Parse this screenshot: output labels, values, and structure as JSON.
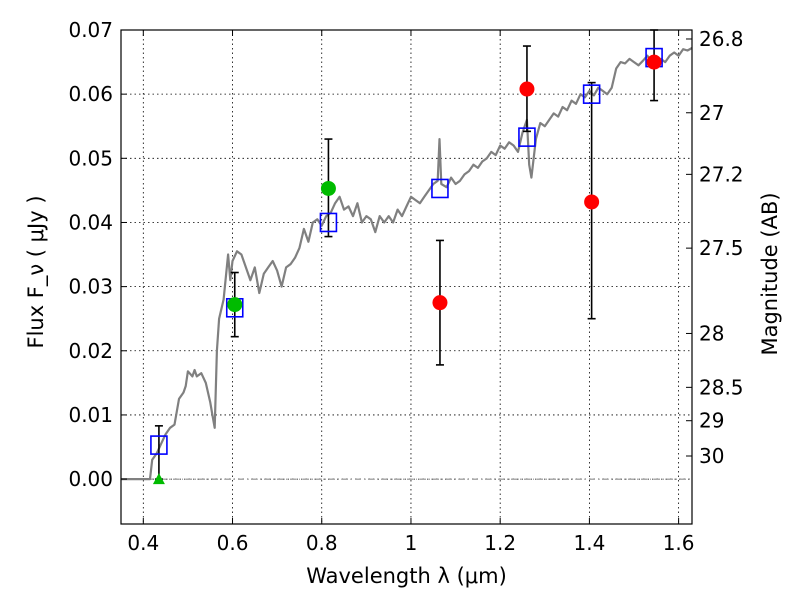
{
  "chart_data": {
    "type": "scatter",
    "xlabel": "Wavelength  λ (μm)",
    "ylabel": "Flux  F_ν  ( μJy )",
    "ylabel2": "Magnitude (AB)",
    "xlim": [
      0.35,
      1.63
    ],
    "ylim": [
      -0.007,
      0.07
    ],
    "grid": true,
    "x_ticks": [
      0.4,
      0.6,
      0.8,
      1.0,
      1.2,
      1.4,
      1.6
    ],
    "x_tick_labels": [
      "0.4",
      "0.6",
      "0.8",
      "1",
      "1.2",
      "1.4",
      "1.6"
    ],
    "y_ticks": [
      0.0,
      0.01,
      0.02,
      0.03,
      0.04,
      0.05,
      0.06,
      0.07
    ],
    "y_tick_labels": [
      "0.00",
      "0.01",
      "0.02",
      "0.03",
      "0.04",
      "0.05",
      "0.06",
      "0.07"
    ],
    "mag_ticks": [
      {
        "label": "26.8",
        "flux": 0.0686
      },
      {
        "label": "27",
        "flux": 0.0571
      },
      {
        "label": "27.2",
        "flux": 0.0475
      },
      {
        "label": "27.5",
        "flux": 0.036
      },
      {
        "label": "28",
        "flux": 0.0227
      },
      {
        "label": "28.5",
        "flux": 0.0143
      },
      {
        "label": "29",
        "flux": 0.0091
      },
      {
        "label": "30",
        "flux": 0.0036
      }
    ],
    "series": [
      {
        "kind": "line",
        "color": "#808080",
        "points": [
          [
            0.35,
            0.0
          ],
          [
            0.4,
            0.0
          ],
          [
            0.415,
            0.0
          ],
          [
            0.42,
            0.003
          ],
          [
            0.43,
            0.004
          ],
          [
            0.44,
            0.0055
          ],
          [
            0.45,
            0.007
          ],
          [
            0.46,
            0.008
          ],
          [
            0.47,
            0.0085
          ],
          [
            0.48,
            0.0125
          ],
          [
            0.49,
            0.0135
          ],
          [
            0.495,
            0.0145
          ],
          [
            0.5,
            0.0168
          ],
          [
            0.51,
            0.016
          ],
          [
            0.515,
            0.017
          ],
          [
            0.52,
            0.016
          ],
          [
            0.53,
            0.0165
          ],
          [
            0.54,
            0.015
          ],
          [
            0.55,
            0.012
          ],
          [
            0.555,
            0.01
          ],
          [
            0.56,
            0.008
          ],
          [
            0.565,
            0.02
          ],
          [
            0.57,
            0.025
          ],
          [
            0.58,
            0.028
          ],
          [
            0.59,
            0.035
          ],
          [
            0.595,
            0.031
          ],
          [
            0.6,
            0.034
          ],
          [
            0.61,
            0.0355
          ],
          [
            0.62,
            0.035
          ],
          [
            0.63,
            0.033
          ],
          [
            0.64,
            0.031
          ],
          [
            0.65,
            0.033
          ],
          [
            0.66,
            0.029
          ],
          [
            0.67,
            0.032
          ],
          [
            0.68,
            0.033
          ],
          [
            0.69,
            0.034
          ],
          [
            0.7,
            0.0325
          ],
          [
            0.71,
            0.03
          ],
          [
            0.72,
            0.033
          ],
          [
            0.73,
            0.0335
          ],
          [
            0.74,
            0.0345
          ],
          [
            0.75,
            0.036
          ],
          [
            0.76,
            0.039
          ],
          [
            0.77,
            0.037
          ],
          [
            0.78,
            0.04
          ],
          [
            0.79,
            0.0405
          ],
          [
            0.8,
            0.0395
          ],
          [
            0.81,
            0.041
          ],
          [
            0.82,
            0.0415
          ],
          [
            0.83,
            0.043
          ],
          [
            0.84,
            0.044
          ],
          [
            0.85,
            0.042
          ],
          [
            0.86,
            0.0425
          ],
          [
            0.87,
            0.041
          ],
          [
            0.88,
            0.043
          ],
          [
            0.89,
            0.04
          ],
          [
            0.9,
            0.041
          ],
          [
            0.91,
            0.0405
          ],
          [
            0.92,
            0.0385
          ],
          [
            0.93,
            0.041
          ],
          [
            0.94,
            0.04
          ],
          [
            0.95,
            0.041
          ],
          [
            0.96,
            0.04
          ],
          [
            0.97,
            0.042
          ],
          [
            0.98,
            0.041
          ],
          [
            0.99,
            0.0425
          ],
          [
            1.0,
            0.044
          ],
          [
            1.01,
            0.0435
          ],
          [
            1.02,
            0.043
          ],
          [
            1.03,
            0.044
          ],
          [
            1.04,
            0.045
          ],
          [
            1.05,
            0.046
          ],
          [
            1.06,
            0.0465
          ],
          [
            1.064,
            0.053
          ],
          [
            1.068,
            0.046
          ],
          [
            1.08,
            0.0455
          ],
          [
            1.09,
            0.047
          ],
          [
            1.1,
            0.046
          ],
          [
            1.11,
            0.0465
          ],
          [
            1.12,
            0.0475
          ],
          [
            1.13,
            0.048
          ],
          [
            1.14,
            0.049
          ],
          [
            1.15,
            0.0485
          ],
          [
            1.16,
            0.0495
          ],
          [
            1.17,
            0.05
          ],
          [
            1.18,
            0.051
          ],
          [
            1.19,
            0.0505
          ],
          [
            1.2,
            0.052
          ],
          [
            1.21,
            0.0515
          ],
          [
            1.22,
            0.0525
          ],
          [
            1.23,
            0.052
          ],
          [
            1.24,
            0.051
          ],
          [
            1.25,
            0.054
          ],
          [
            1.26,
            0.056
          ],
          [
            1.265,
            0.049
          ],
          [
            1.27,
            0.047
          ],
          [
            1.28,
            0.053
          ],
          [
            1.29,
            0.0555
          ],
          [
            1.3,
            0.055
          ],
          [
            1.31,
            0.056
          ],
          [
            1.32,
            0.057
          ],
          [
            1.33,
            0.0565
          ],
          [
            1.34,
            0.058
          ],
          [
            1.35,
            0.0575
          ],
          [
            1.36,
            0.059
          ],
          [
            1.37,
            0.0585
          ],
          [
            1.38,
            0.06
          ],
          [
            1.39,
            0.0595
          ],
          [
            1.4,
            0.0605
          ],
          [
            1.41,
            0.0598
          ],
          [
            1.42,
            0.061
          ],
          [
            1.43,
            0.0605
          ],
          [
            1.44,
            0.06
          ],
          [
            1.45,
            0.061
          ],
          [
            1.46,
            0.064
          ],
          [
            1.47,
            0.065
          ],
          [
            1.48,
            0.0648
          ],
          [
            1.49,
            0.0655
          ],
          [
            1.5,
            0.065
          ],
          [
            1.51,
            0.0645
          ],
          [
            1.52,
            0.0652
          ],
          [
            1.53,
            0.066
          ],
          [
            1.54,
            0.065
          ],
          [
            1.55,
            0.0648
          ],
          [
            1.56,
            0.0655
          ],
          [
            1.57,
            0.065
          ],
          [
            1.58,
            0.066
          ],
          [
            1.59,
            0.0665
          ],
          [
            1.6,
            0.066
          ],
          [
            1.61,
            0.067
          ],
          [
            1.62,
            0.0668
          ],
          [
            1.63,
            0.0672
          ]
        ]
      },
      {
        "kind": "errorbar",
        "color": "#000000",
        "points": [
          {
            "x": 0.435,
            "y": 0.0005,
            "ylo": 0.0,
            "yhi": 0.0083
          },
          {
            "x": 0.605,
            "y": 0.0272,
            "ylo": 0.0222,
            "yhi": 0.0322
          },
          {
            "x": 0.815,
            "y": 0.0453,
            "ylo": 0.0378,
            "yhi": 0.053
          },
          {
            "x": 1.065,
            "y": 0.0275,
            "ylo": 0.0178,
            "yhi": 0.0372
          },
          {
            "x": 1.26,
            "y": 0.0608,
            "ylo": 0.0542,
            "yhi": 0.0675
          },
          {
            "x": 1.405,
            "y": 0.0432,
            "ylo": 0.025,
            "yhi": 0.0618
          },
          {
            "x": 1.545,
            "y": 0.065,
            "ylo": 0.059,
            "yhi": 0.07
          }
        ]
      },
      {
        "kind": "square",
        "color": "#0000ff",
        "points": [
          [
            0.435,
            0.0053
          ],
          [
            0.605,
            0.0267
          ],
          [
            0.815,
            0.04
          ],
          [
            1.065,
            0.0453
          ],
          [
            1.26,
            0.0533
          ],
          [
            1.405,
            0.06
          ],
          [
            1.545,
            0.0657
          ]
        ]
      },
      {
        "kind": "circle",
        "color": "#00bb00",
        "points": [
          [
            0.605,
            0.0272
          ],
          [
            0.815,
            0.0453
          ]
        ]
      },
      {
        "kind": "circle",
        "color": "#ff0000",
        "points": [
          [
            1.065,
            0.0275
          ],
          [
            1.26,
            0.0608
          ],
          [
            1.405,
            0.0432
          ],
          [
            1.545,
            0.065
          ]
        ]
      },
      {
        "kind": "triangle",
        "color": "#00bb00",
        "points": [
          [
            0.435,
            0.0
          ]
        ]
      }
    ]
  }
}
